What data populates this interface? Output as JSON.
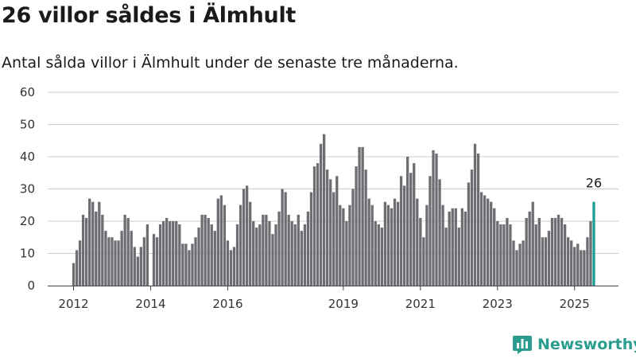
{
  "header": {
    "title": "26 villor såldes i Älmhult",
    "subtitle": "Antal sålda villor i Älmhult under de senaste tre månaderna."
  },
  "brand": {
    "name": "Newsworthy",
    "icon": "newsworthy-logo-icon"
  },
  "colors": {
    "bar": "#6e6d72",
    "highlight": "#1a9e96",
    "grid": "#cccccc",
    "axis": "#444444",
    "brand": "#2a9d8f"
  },
  "chart_data": {
    "type": "bar",
    "title": "26 villor såldes i Älmhult",
    "xlabel": "",
    "ylabel": "",
    "ylim": [
      0,
      60
    ],
    "yticks": [
      "0",
      "10",
      "20",
      "30",
      "40",
      "50",
      "60"
    ],
    "xticks": [
      {
        "label": "2012",
        "index": 0
      },
      {
        "label": "2014",
        "index": 24
      },
      {
        "label": "2016",
        "index": 48
      },
      {
        "label": "2019",
        "index": 84
      },
      {
        "label": "2021",
        "index": 108
      },
      {
        "label": "2023",
        "index": 132
      },
      {
        "label": "2025",
        "index": 156
      }
    ],
    "grid": true,
    "highlight_index": 162,
    "highlight_label": "26",
    "start_month": "2012-01",
    "values": [
      7,
      11,
      14,
      22,
      21,
      27,
      26,
      23,
      26,
      22,
      17,
      15,
      15,
      14,
      14,
      17,
      22,
      21,
      17,
      12,
      9,
      12,
      15,
      19,
      0,
      16,
      15,
      19,
      20,
      21,
      20,
      20,
      20,
      19,
      13,
      13,
      11,
      13,
      15,
      18,
      22,
      22,
      21,
      19,
      17,
      27,
      28,
      25,
      14,
      11,
      12,
      19,
      25,
      30,
      31,
      26,
      20,
      18,
      19,
      22,
      22,
      20,
      16,
      19,
      23,
      30,
      29,
      22,
      20,
      19,
      22,
      17,
      19,
      23,
      29,
      37,
      38,
      44,
      47,
      36,
      33,
      29,
      34,
      25,
      24,
      20,
      25,
      30,
      37,
      43,
      43,
      36,
      27,
      25,
      20,
      19,
      18,
      26,
      25,
      24,
      27,
      26,
      34,
      31,
      40,
      35,
      38,
      27,
      21,
      15,
      25,
      34,
      42,
      41,
      33,
      25,
      18,
      23,
      24,
      24,
      18,
      24,
      23,
      32,
      36,
      44,
      41,
      29,
      28,
      27,
      26,
      24,
      20,
      19,
      19,
      21,
      19,
      14,
      11,
      13,
      14,
      21,
      23,
      26,
      19,
      21,
      15,
      15,
      17,
      21,
      21,
      22,
      21,
      19,
      15,
      14,
      12,
      13,
      11,
      11,
      15,
      20,
      26
    ]
  }
}
